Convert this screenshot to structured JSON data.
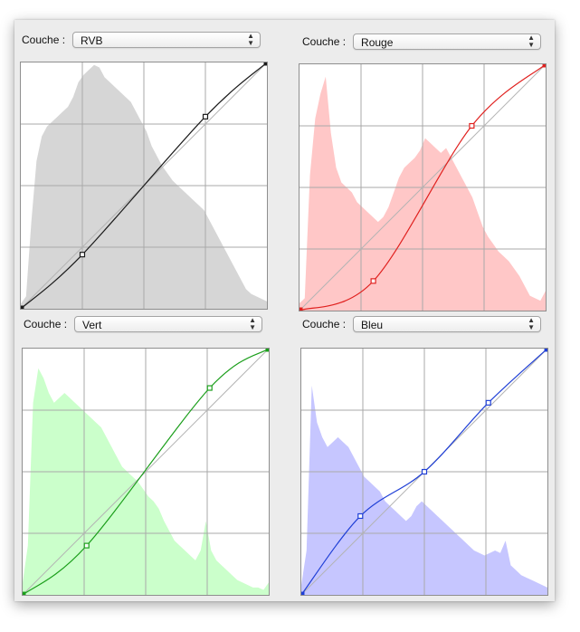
{
  "curves_panel": {
    "channels": [
      {
        "id": "rvb",
        "label": "Couche :",
        "selected": "RVB",
        "hist_color": "#d6d6d6",
        "curve_color": "#1a1a1a",
        "points": [
          [
            0,
            0
          ],
          [
            0.25,
            0.22
          ],
          [
            0.75,
            0.78
          ],
          [
            1,
            1
          ]
        ],
        "histogram": [
          0.02,
          0.05,
          0.35,
          0.6,
          0.7,
          0.74,
          0.76,
          0.78,
          0.8,
          0.82,
          0.86,
          0.92,
          0.95,
          0.97,
          0.99,
          0.98,
          0.94,
          0.92,
          0.9,
          0.88,
          0.86,
          0.84,
          0.8,
          0.76,
          0.72,
          0.66,
          0.62,
          0.58,
          0.55,
          0.52,
          0.5,
          0.48,
          0.46,
          0.44,
          0.42,
          0.4,
          0.36,
          0.32,
          0.28,
          0.24,
          0.2,
          0.16,
          0.12,
          0.08,
          0.06,
          0.05,
          0.04,
          0.03
        ]
      },
      {
        "id": "rouge",
        "label": "Couche :",
        "selected": "Rouge",
        "hist_color": "#ffc7c7",
        "curve_color": "#e0201e",
        "points": [
          [
            0,
            0
          ],
          [
            0.3,
            0.12
          ],
          [
            0.7,
            0.75
          ],
          [
            1,
            1
          ]
        ],
        "histogram": [
          0.03,
          0.05,
          0.55,
          0.78,
          0.88,
          0.95,
          0.72,
          0.58,
          0.52,
          0.5,
          0.48,
          0.44,
          0.42,
          0.4,
          0.38,
          0.36,
          0.38,
          0.42,
          0.48,
          0.54,
          0.58,
          0.6,
          0.62,
          0.65,
          0.7,
          0.68,
          0.66,
          0.64,
          0.66,
          0.62,
          0.58,
          0.54,
          0.5,
          0.46,
          0.4,
          0.34,
          0.3,
          0.27,
          0.24,
          0.22,
          0.2,
          0.17,
          0.14,
          0.1,
          0.06,
          0.05,
          0.04,
          0.08
        ]
      },
      {
        "id": "vert",
        "label": "Couche :",
        "selected": "Vert",
        "hist_color": "#cbffcb",
        "curve_color": "#1a9e1a",
        "points": [
          [
            0,
            0
          ],
          [
            0.26,
            0.2
          ],
          [
            0.76,
            0.84
          ],
          [
            1,
            1
          ]
        ],
        "histogram": [
          0.05,
          0.2,
          0.78,
          0.92,
          0.88,
          0.82,
          0.78,
          0.8,
          0.82,
          0.8,
          0.78,
          0.76,
          0.74,
          0.72,
          0.7,
          0.68,
          0.64,
          0.6,
          0.56,
          0.52,
          0.5,
          0.48,
          0.46,
          0.43,
          0.4,
          0.38,
          0.35,
          0.3,
          0.26,
          0.22,
          0.2,
          0.18,
          0.16,
          0.14,
          0.18,
          0.3,
          0.18,
          0.14,
          0.12,
          0.1,
          0.08,
          0.06,
          0.05,
          0.04,
          0.03,
          0.03,
          0.02,
          0.05
        ]
      },
      {
        "id": "bleu",
        "label": "Couche :",
        "selected": "Bleu",
        "hist_color": "#c6c6ff",
        "curve_color": "#1f3fd6",
        "points": [
          [
            0,
            0
          ],
          [
            0.24,
            0.32
          ],
          [
            0.5,
            0.5
          ],
          [
            0.76,
            0.78
          ],
          [
            1,
            1
          ]
        ],
        "histogram": [
          0.04,
          0.18,
          0.85,
          0.7,
          0.64,
          0.6,
          0.62,
          0.64,
          0.62,
          0.6,
          0.56,
          0.52,
          0.48,
          0.46,
          0.44,
          0.42,
          0.38,
          0.36,
          0.34,
          0.32,
          0.3,
          0.32,
          0.36,
          0.38,
          0.36,
          0.34,
          0.32,
          0.3,
          0.28,
          0.26,
          0.24,
          0.22,
          0.2,
          0.18,
          0.17,
          0.16,
          0.17,
          0.18,
          0.17,
          0.22,
          0.12,
          0.1,
          0.08,
          0.07,
          0.06,
          0.05,
          0.04,
          0.03
        ]
      }
    ]
  }
}
